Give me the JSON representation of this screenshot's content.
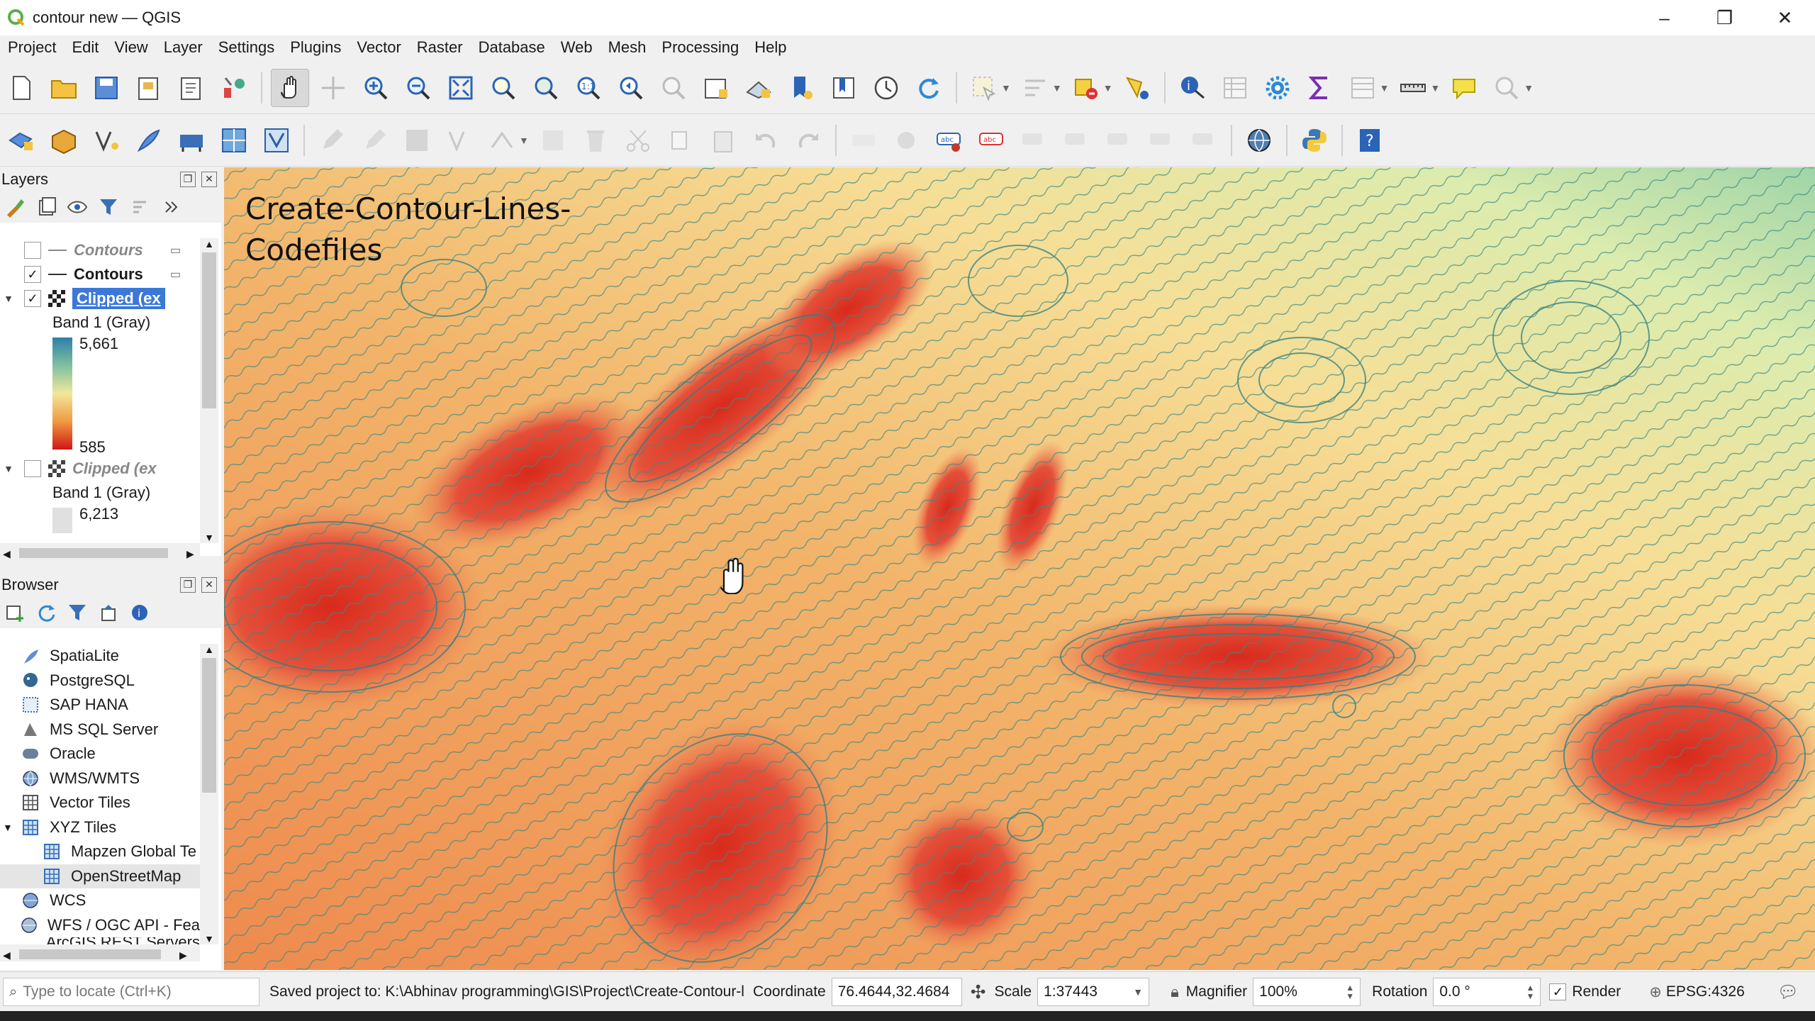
{
  "window": {
    "title": "contour new — QGIS",
    "controls": [
      "–",
      "❐",
      "✕"
    ]
  },
  "menu": [
    "Project",
    "Edit",
    "View",
    "Layer",
    "Settings",
    "Plugins",
    "Vector",
    "Raster",
    "Database",
    "Web",
    "Mesh",
    "Processing",
    "Help"
  ],
  "layers_panel": {
    "title": "Layers",
    "items": [
      {
        "name": "Contours",
        "checked": false
      },
      {
        "name": "Contours",
        "checked": true
      },
      {
        "name": "Clipped (ex",
        "checked": true,
        "selected": true
      },
      {
        "band": "Band 1 (Gray)",
        "max": "5,661",
        "min": "585"
      },
      {
        "name": "Clipped (ex",
        "checked": false
      },
      {
        "band": "Band 1 (Gray)",
        "max": "6,213"
      }
    ]
  },
  "browser_panel": {
    "title": "Browser",
    "items": [
      "SpatiaLite",
      "PostgreSQL",
      "SAP HANA",
      "MS SQL Server",
      "Oracle",
      "WMS/WMTS",
      "Vector Tiles",
      "XYZ Tiles",
      "Mapzen Global Te",
      "OpenStreetMap",
      "WCS",
      "WFS / OGC API - Fea",
      "ArcGIS REST Servers"
    ]
  },
  "map": {
    "label_line1": "Create-Contour-Lines-",
    "label_line2": "Codefiles"
  },
  "status": {
    "locate_placeholder": "Type to locate (Ctrl+K)",
    "message": "Saved project to: K:\\Abhinav programming\\GIS\\Project\\Create-Contour-l",
    "coordinate_label": "Coordinate",
    "coordinate_value": "76.4644,32.4684",
    "scale_label": "Scale",
    "scale_value": "1:37443",
    "magnifier_label": "Magnifier",
    "magnifier_value": "100%",
    "rotation_label": "Rotation",
    "rotation_value": "0.0 °",
    "render_label": "Render",
    "crs": "EPSG:4326"
  }
}
